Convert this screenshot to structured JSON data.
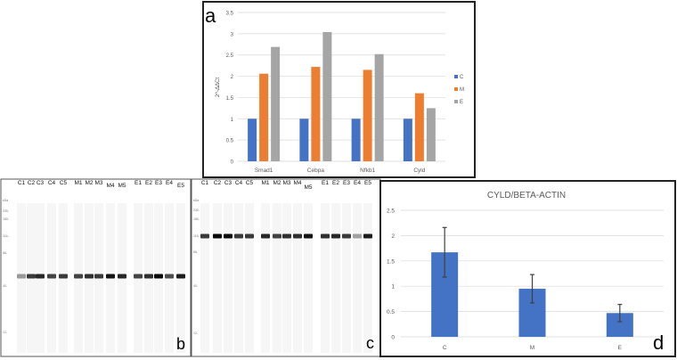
{
  "panel_labels": {
    "a": "a",
    "b": "b",
    "c": "c",
    "d": "d"
  },
  "colors": {
    "C": "#4472c4",
    "M": "#ed7d31",
    "E": "#a5a5a5",
    "d_bar": "#4472c4",
    "grid": "#d9d9d9",
    "axis_text": "#595959"
  },
  "chart_data": [
    {
      "type": "bar",
      "panel": "a",
      "title": "",
      "xlabel": "",
      "ylabel": "2^-ΔΔCt",
      "ylim": [
        0,
        3.5
      ],
      "yticks": [
        "0",
        "0.5",
        "1",
        "1.5",
        "2",
        "2.5",
        "3",
        "3.5"
      ],
      "grid": true,
      "legend": "right",
      "categories": [
        "Smad1",
        "Cebpa",
        "Nfkb1",
        "Cyld"
      ],
      "series": [
        {
          "name": "C",
          "values": [
            1,
            1,
            1,
            1
          ]
        },
        {
          "name": "M",
          "values": [
            2.06,
            2.22,
            2.15,
            1.6
          ]
        },
        {
          "name": "E",
          "values": [
            2.69,
            3.04,
            2.52,
            1.25
          ]
        }
      ]
    },
    {
      "type": "bar",
      "panel": "d",
      "title": "CYLD/BETA-ACTIN",
      "xlabel": "",
      "ylabel": "",
      "ylim": [
        0,
        2.5
      ],
      "yticks": [
        "0",
        "0.5",
        "1",
        "1.5",
        "2",
        "2.5"
      ],
      "grid": true,
      "categories": [
        "C",
        "M",
        "E"
      ],
      "values": [
        1.67,
        0.95,
        0.47
      ],
      "error_low": [
        1.18,
        0.67,
        0.3
      ],
      "error_high": [
        2.16,
        1.23,
        0.64
      ]
    }
  ],
  "blots": {
    "b": {
      "lanes": [
        "C1",
        "C2",
        "C3",
        "C4",
        "C5",
        "M1",
        "M2",
        "M3",
        "M4",
        "M5",
        "E1",
        "E2",
        "E3",
        "E4",
        "E5"
      ],
      "band_intensity": [
        0.25,
        0.75,
        0.85,
        0.7,
        0.75,
        0.7,
        0.8,
        0.75,
        0.95,
        0.85,
        0.7,
        0.8,
        1.0,
        0.65,
        0.9
      ],
      "markers": [
        "kDa",
        "230",
        "180",
        "116",
        "66",
        "40",
        "12"
      ]
    },
    "c": {
      "lanes": [
        "C1",
        "C2",
        "C3",
        "C4",
        "C5",
        "M1",
        "M2",
        "M3",
        "M4",
        "M5",
        "E1",
        "E2",
        "E3",
        "E4",
        "E5"
      ],
      "band_intensity": [
        0.75,
        1.0,
        1.0,
        0.75,
        0.75,
        0.85,
        0.7,
        0.8,
        0.8,
        0.95,
        0.8,
        0.85,
        0.75,
        0.2,
        0.9
      ],
      "markers": [
        "kDa",
        "230",
        "180",
        "116",
        "66",
        "40",
        "12"
      ]
    }
  }
}
